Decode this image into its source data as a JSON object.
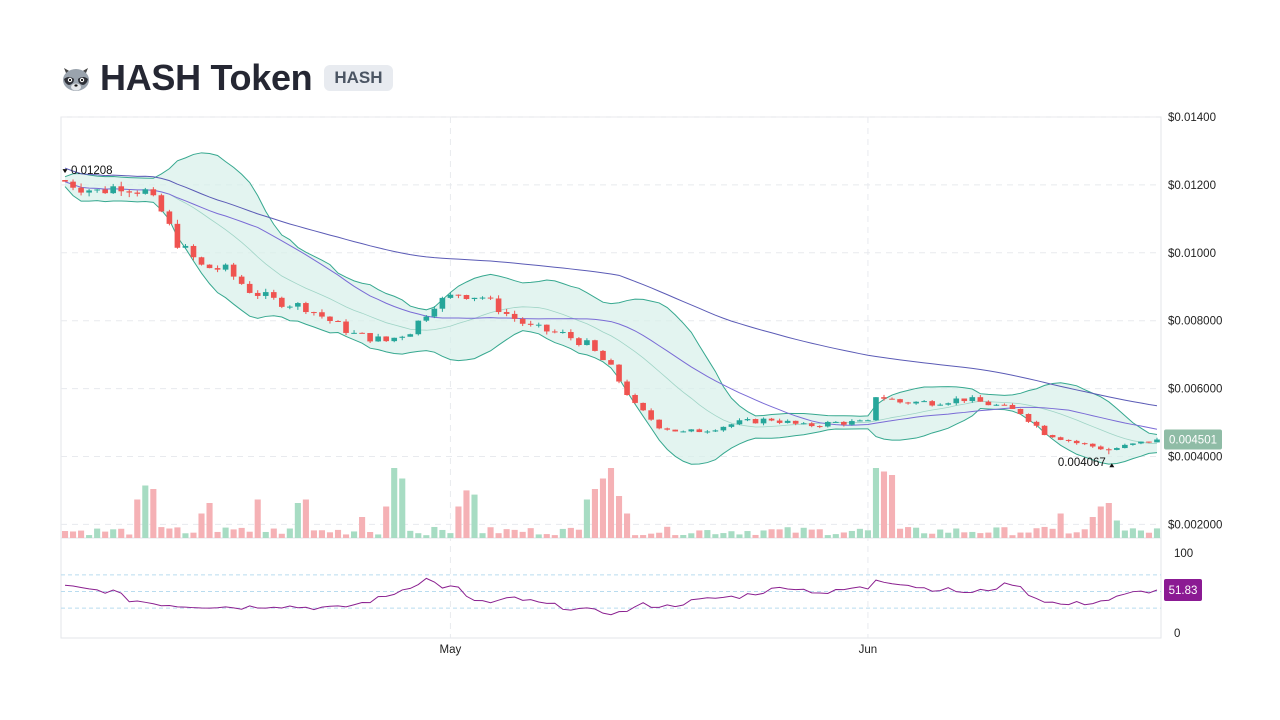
{
  "header": {
    "logo_icon": "raccoon-icon",
    "title": "HASH Token",
    "symbol": "HASH"
  },
  "chart_data": {
    "type": "candlestick",
    "price_axis": {
      "ticks": [
        0.014,
        0.012,
        0.01,
        0.008,
        0.006,
        0.004,
        0.002
      ],
      "tick_labels": [
        "$0.01400",
        "$0.01200",
        "$0.01000",
        "$0.008000",
        "$0.006000",
        "$0.004000",
        "$0.002000"
      ],
      "ylim": [
        0.0016,
        0.014
      ]
    },
    "rsi_axis": {
      "ticks": [
        100,
        0
      ],
      "tick_labels": [
        "100",
        "0"
      ],
      "ylim": [
        0,
        100
      ],
      "bands": [
        70,
        50,
        30
      ]
    },
    "x_axis": {
      "tick_labels": [
        "May",
        "Jun"
      ],
      "tick_indices": [
        48,
        100
      ]
    },
    "grid": true,
    "annotations": {
      "high": {
        "label": "0.01208",
        "value": 0.01208,
        "index": 0
      },
      "low": {
        "label": "0.004067",
        "value": 0.004067,
        "index": 130
      }
    },
    "last_price": {
      "label": "0.004501",
      "value": 0.004501
    },
    "last_rsi": {
      "label": "51.83",
      "value": 51.83
    },
    "close_anchors": [
      [
        0,
        0.0121
      ],
      [
        4,
        0.0118
      ],
      [
        7,
        0.012
      ],
      [
        10,
        0.0118
      ],
      [
        12,
        0.0112
      ],
      [
        14,
        0.0103
      ],
      [
        17,
        0.0096
      ],
      [
        20,
        0.0095
      ],
      [
        23,
        0.0089
      ],
      [
        26,
        0.0086
      ],
      [
        30,
        0.0084
      ],
      [
        33,
        0.008
      ],
      [
        36,
        0.0076
      ],
      [
        40,
        0.0074
      ],
      [
        43,
        0.0077
      ],
      [
        46,
        0.0085
      ],
      [
        49,
        0.0088
      ],
      [
        52,
        0.0087
      ],
      [
        55,
        0.0082
      ],
      [
        58,
        0.0078
      ],
      [
        62,
        0.0076
      ],
      [
        65,
        0.0073
      ],
      [
        68,
        0.0066
      ],
      [
        71,
        0.0055
      ],
      [
        74,
        0.0049
      ],
      [
        77,
        0.0047
      ],
      [
        80,
        0.0048
      ],
      [
        84,
        0.005
      ],
      [
        88,
        0.0051
      ],
      [
        92,
        0.0049
      ],
      [
        96,
        0.005
      ],
      [
        100,
        0.005
      ],
      [
        101,
        0.0058
      ],
      [
        104,
        0.0056
      ],
      [
        108,
        0.0056
      ],
      [
        112,
        0.0057
      ],
      [
        116,
        0.0055
      ],
      [
        119,
        0.0053
      ],
      [
        122,
        0.0047
      ],
      [
        126,
        0.0044
      ],
      [
        130,
        0.0042
      ],
      [
        134,
        0.0044
      ],
      [
        136,
        0.0045
      ]
    ],
    "rsi_anchors": [
      [
        0,
        56
      ],
      [
        3,
        52
      ],
      [
        6,
        50
      ],
      [
        8,
        40
      ],
      [
        11,
        36
      ],
      [
        14,
        33
      ],
      [
        18,
        32
      ],
      [
        22,
        31
      ],
      [
        26,
        33
      ],
      [
        30,
        31
      ],
      [
        34,
        30
      ],
      [
        37,
        36
      ],
      [
        40,
        44
      ],
      [
        42,
        52
      ],
      [
        45,
        65
      ],
      [
        47,
        56
      ],
      [
        49,
        54
      ],
      [
        50,
        42
      ],
      [
        53,
        36
      ],
      [
        56,
        42
      ],
      [
        59,
        36
      ],
      [
        63,
        30
      ],
      [
        66,
        26
      ],
      [
        69,
        24
      ],
      [
        72,
        34
      ],
      [
        75,
        32
      ],
      [
        78,
        38
      ],
      [
        81,
        42
      ],
      [
        84,
        44
      ],
      [
        87,
        50
      ],
      [
        90,
        56
      ],
      [
        92,
        52
      ],
      [
        95,
        48
      ],
      [
        98,
        54
      ],
      [
        100,
        54
      ],
      [
        101,
        65
      ],
      [
        104,
        60
      ],
      [
        107,
        54
      ],
      [
        110,
        52
      ],
      [
        113,
        48
      ],
      [
        116,
        55
      ],
      [
        118,
        60
      ],
      [
        121,
        42
      ],
      [
        124,
        34
      ],
      [
        127,
        36
      ],
      [
        130,
        40
      ],
      [
        133,
        48
      ],
      [
        136,
        52
      ]
    ],
    "volume_spikes": [
      [
        9,
        0.55
      ],
      [
        10,
        0.75
      ],
      [
        11,
        0.7
      ],
      [
        17,
        0.35
      ],
      [
        18,
        0.5
      ],
      [
        24,
        0.55
      ],
      [
        29,
        0.5
      ],
      [
        30,
        0.55
      ],
      [
        37,
        0.3
      ],
      [
        40,
        0.45
      ],
      [
        41,
        1.0
      ],
      [
        42,
        0.85
      ],
      [
        49,
        0.45
      ],
      [
        50,
        0.68
      ],
      [
        51,
        0.62
      ],
      [
        65,
        0.55
      ],
      [
        66,
        0.7
      ],
      [
        67,
        0.85
      ],
      [
        68,
        1.0
      ],
      [
        69,
        0.6
      ],
      [
        70,
        0.35
      ],
      [
        101,
        1.0
      ],
      [
        102,
        0.95
      ],
      [
        103,
        0.9
      ],
      [
        124,
        0.35
      ],
      [
        128,
        0.3
      ],
      [
        129,
        0.45
      ],
      [
        130,
        0.5
      ],
      [
        131,
        0.25
      ]
    ],
    "candle_count": 137,
    "colors": {
      "up": "#26a69a",
      "down": "#ef5350",
      "vol_up": "#a7dcc3",
      "vol_down": "#f5b1b5",
      "bb_fill": "#d7efe9",
      "bb_line": "#36a88f",
      "ma_long": "#5b5bb6",
      "ma_mid": "#7a6bd6",
      "rsi_line": "#8a1f8f",
      "rsi_band": "#b9dcef",
      "last_price_tag": "#8fbca6",
      "rsi_tag": "#8b1a93"
    }
  }
}
